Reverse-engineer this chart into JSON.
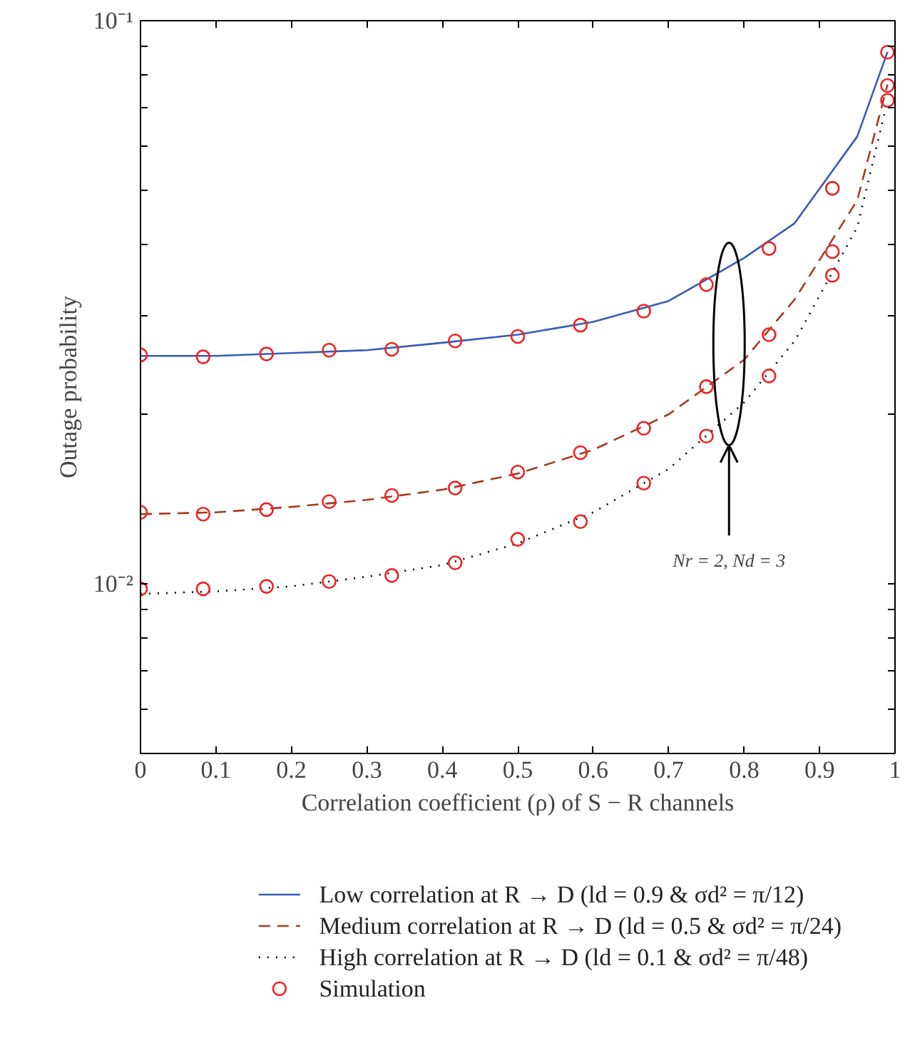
{
  "chart_data": {
    "type": "line",
    "xlabel": "Correlation coefficient (ρ) of S − R channels",
    "ylabel": "Outage probability",
    "xlim": [
      0,
      1
    ],
    "xticks": [
      0,
      0.1,
      0.2,
      0.3,
      0.4,
      0.5,
      0.6,
      0.7,
      0.8,
      0.9,
      1
    ],
    "ylim": [
      0.005,
      0.1
    ],
    "log": "y",
    "yticks": [
      {
        "value": 0.005,
        "label": null
      },
      {
        "value": 0.006,
        "label": null
      },
      {
        "value": 0.007,
        "label": null
      },
      {
        "value": 0.008,
        "label": null
      },
      {
        "value": 0.009,
        "label": null
      },
      {
        "value": 0.01,
        "label": "10⁻²"
      },
      {
        "value": 0.02,
        "label": null
      },
      {
        "value": 0.03,
        "label": null
      },
      {
        "value": 0.04,
        "label": null
      },
      {
        "value": 0.05,
        "label": null
      },
      {
        "value": 0.06,
        "label": null
      },
      {
        "value": 0.07,
        "label": null
      },
      {
        "value": 0.08,
        "label": null
      },
      {
        "value": 0.09,
        "label": null
      },
      {
        "value": 0.1,
        "label": "10⁻¹"
      }
    ],
    "legend": "bottom",
    "annotations": [
      "Nr = 2, Nd = 3"
    ],
    "series": [
      {
        "name": "Low correlation at R → D (ld = 0.9 & σd² = π/12)",
        "color": "#3a5bb5",
        "line_style": "solid",
        "marker": "none",
        "x": [
          0,
          0.1,
          0.2,
          0.3,
          0.4,
          0.5,
          0.6,
          0.7,
          0.8,
          0.867,
          0.95,
          0.99
        ],
        "values": [
          0.0254,
          0.0254,
          0.0257,
          0.026,
          0.0268,
          0.0277,
          0.0292,
          0.0318,
          0.0379,
          0.0437,
          0.0623,
          0.088
        ]
      },
      {
        "name": "Medium correlation at R → D (ld = 0.5 & σd² = π/24)",
        "color": "#a63a1e",
        "line_style": "dashed",
        "marker": "none",
        "x": [
          0,
          0.1,
          0.2,
          0.3,
          0.4,
          0.5,
          0.6,
          0.7,
          0.8,
          0.867,
          0.95,
          0.99
        ],
        "values": [
          0.0133,
          0.0134,
          0.0137,
          0.0141,
          0.0147,
          0.0157,
          0.0173,
          0.02,
          0.025,
          0.032,
          0.048,
          0.077
        ]
      },
      {
        "name": "High correlation at R → D (ld = 0.1 & σd² = π/48)",
        "color": "#000000",
        "line_style": "dotted",
        "marker": "none",
        "x": [
          0,
          0.1,
          0.2,
          0.3,
          0.4,
          0.5,
          0.6,
          0.7,
          0.8,
          0.867,
          0.95,
          0.99
        ],
        "values": [
          0.0096,
          0.0097,
          0.0099,
          0.0103,
          0.0108,
          0.0118,
          0.0134,
          0.016,
          0.021,
          0.027,
          0.043,
          0.072
        ]
      },
      {
        "name": "Simulation",
        "type": "scatter",
        "color": "#ee2222",
        "marker": "circle",
        "x": [
          0,
          0.083,
          0.167,
          0.25,
          0.333,
          0.417,
          0.5,
          0.583,
          0.667,
          0.75,
          0.833,
          0.917,
          0.99,
          0,
          0.083,
          0.167,
          0.25,
          0.333,
          0.417,
          0.5,
          0.583,
          0.667,
          0.75,
          0.833,
          0.917,
          0.99,
          0,
          0.083,
          0.167,
          0.25,
          0.333,
          0.417,
          0.5,
          0.583,
          0.667,
          0.75,
          0.833,
          0.917,
          0.99
        ],
        "values": [
          0.0255,
          0.0253,
          0.0256,
          0.026,
          0.0261,
          0.027,
          0.0275,
          0.0288,
          0.0305,
          0.034,
          0.0394,
          0.0504,
          0.0879,
          0.0134,
          0.0133,
          0.01355,
          0.014,
          0.01436,
          0.0148,
          0.0158,
          0.0171,
          0.0189,
          0.0224,
          0.0277,
          0.0389,
          0.0767,
          0.0098,
          0.0098,
          0.0099,
          0.0101,
          0.01035,
          0.0109,
          0.012,
          0.0129,
          0.0151,
          0.0183,
          0.0234,
          0.0353,
          0.0722
        ]
      }
    ]
  }
}
